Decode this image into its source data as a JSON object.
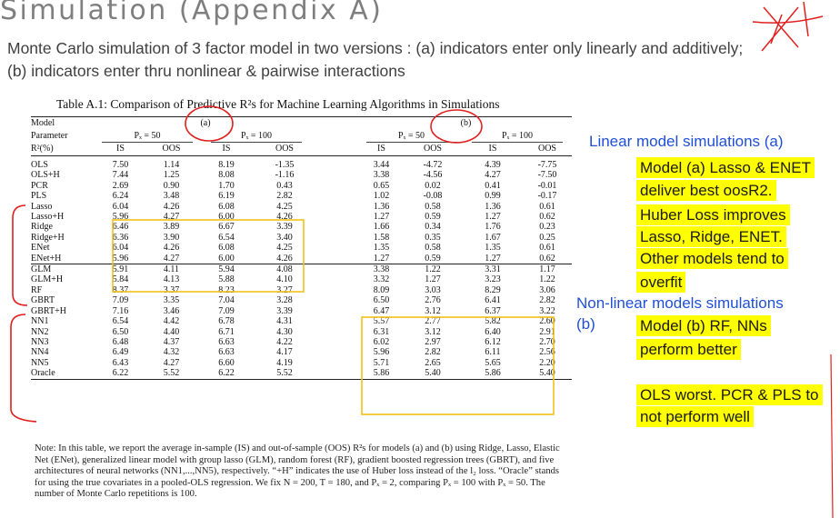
{
  "slide": {
    "title": "Simulation (Appendix A)",
    "subtitle": "Monte Carlo simulation of 3 factor model in two versions : (a) indicators enter only linearly and additively;   (b) indicators enter thru nonlinear & pairwise interactions"
  },
  "table": {
    "caption": "Table A.1: Comparison of Predictive R²s for Machine Learning Algorithms in Simulations",
    "row_labels": {
      "model": "Model",
      "parameter": "Parameter",
      "metric": "R²(%)"
    },
    "model_a": "(a)",
    "model_b": "(b)",
    "param_50": "Pₓ = 50",
    "param_100": "Pₓ = 100",
    "is_label": "IS",
    "oos_label": "OOS",
    "rows": [
      {
        "name": "OLS",
        "v": [
          "7.50",
          "1.14",
          "8.19",
          "-1.35",
          "3.44",
          "-4.72",
          "4.39",
          "-7.75"
        ]
      },
      {
        "name": "OLS+H",
        "v": [
          "7.44",
          "1.25",
          "8.08",
          "-1.16",
          "3.38",
          "-4.56",
          "4.27",
          "-7.50"
        ]
      },
      {
        "name": "PCR",
        "v": [
          "2.69",
          "0.90",
          "1.70",
          "0.43",
          "0.65",
          "0.02",
          "0.41",
          "-0.01"
        ]
      },
      {
        "name": "PLS",
        "v": [
          "6.24",
          "3.48",
          "6.19",
          "2.82",
          "1.02",
          "-0.08",
          "0.99",
          "-0.17"
        ]
      },
      {
        "name": "Lasso",
        "v": [
          "6.04",
          "4.26",
          "6.08",
          "4.25",
          "1.36",
          "0.58",
          "1.36",
          "0.61"
        ]
      },
      {
        "name": "Lasso+H",
        "v": [
          "5.96",
          "4.27",
          "6.00",
          "4.26",
          "1.27",
          "0.59",
          "1.27",
          "0.62"
        ]
      },
      {
        "name": "Ridge",
        "v": [
          "6.46",
          "3.89",
          "6.67",
          "3.39",
          "1.66",
          "0.34",
          "1.76",
          "0.23"
        ]
      },
      {
        "name": "Ridge+H",
        "v": [
          "6.36",
          "3.90",
          "6.54",
          "3.40",
          "1.58",
          "0.35",
          "1.67",
          "0.25"
        ]
      },
      {
        "name": "ENet",
        "v": [
          "6.04",
          "4.26",
          "6.08",
          "4.25",
          "1.35",
          "0.58",
          "1.35",
          "0.61"
        ]
      },
      {
        "name": "ENet+H",
        "v": [
          "5.96",
          "4.27",
          "6.00",
          "4.26",
          "1.27",
          "0.59",
          "1.27",
          "0.62"
        ]
      },
      {
        "name": "GLM",
        "v": [
          "5.91",
          "4.11",
          "5.94",
          "4.08",
          "3.38",
          "1.22",
          "3.31",
          "1.17"
        ]
      },
      {
        "name": "GLM+H",
        "v": [
          "5.84",
          "4.13",
          "5.88",
          "4.10",
          "3.32",
          "1.27",
          "3.23",
          "1.22"
        ]
      },
      {
        "name": "RF",
        "v": [
          "8.37",
          "3.37",
          "8.23",
          "3.27",
          "8.09",
          "3.03",
          "8.29",
          "3.06"
        ]
      },
      {
        "name": "GBRT",
        "v": [
          "7.09",
          "3.35",
          "7.04",
          "3.28",
          "6.50",
          "2.76",
          "6.41",
          "2.82"
        ]
      },
      {
        "name": "GBRT+H",
        "v": [
          "7.16",
          "3.46",
          "7.09",
          "3.39",
          "6.47",
          "3.12",
          "6.37",
          "3.22"
        ]
      },
      {
        "name": "NN1",
        "v": [
          "6.54",
          "4.42",
          "6.78",
          "4.31",
          "5.57",
          "2.77",
          "5.82",
          "2.60"
        ]
      },
      {
        "name": "NN2",
        "v": [
          "6.50",
          "4.40",
          "6.71",
          "4.30",
          "6.31",
          "3.12",
          "6.40",
          "2.91"
        ]
      },
      {
        "name": "NN3",
        "v": [
          "6.48",
          "4.37",
          "6.63",
          "4.22",
          "6.02",
          "2.97",
          "6.12",
          "2.70"
        ]
      },
      {
        "name": "NN4",
        "v": [
          "6.49",
          "4.32",
          "6.63",
          "4.17",
          "5.96",
          "2.82",
          "6.11",
          "2.56"
        ]
      },
      {
        "name": "NN5",
        "v": [
          "6.43",
          "4.27",
          "6.60",
          "4.19",
          "5.71",
          "2.65",
          "5.65",
          "2.20"
        ]
      },
      {
        "name": "Oracle",
        "v": [
          "6.22",
          "5.52",
          "6.22",
          "5.52",
          "5.86",
          "5.40",
          "5.86",
          "5.40"
        ]
      }
    ],
    "note": "Note: In this table, we report the average in-sample (IS) and out-of-sample (OOS) R²s for models (a) and (b) using Ridge, Lasso, Elastic Net (ENet), generalized linear model with group lasso (GLM), random forest (RF), gradient boosted regression trees (GBRT), and five architectures of neural networks (NN1,...,NN5), respectively. “+H” indicates the use of Huber loss instead of the l₂ loss. “Oracle” stands for using the true covariates in a pooled-OLS regression. We fix N = 200, T = 180, and Pₓ = 2, comparing Pₓ = 100 with Pₓ = 50. The number of Monte Carlo repetitions is 100."
  },
  "annotations": {
    "linear_heading": "Linear model simulations (a)",
    "linear_points": [
      "Model (a) Lasso & ENET",
      "deliver best oosR2.",
      "Huber Loss improves",
      "Lasso, Ridge, ENET.",
      "Other models tend to",
      "overfit"
    ],
    "nonlinear_heading": "Non-linear models simulations",
    "nonlinear_b": "(b)",
    "nonlinear_points": [
      "Model (b) RF, NNs",
      "perform better"
    ],
    "ols_points": [
      "OLS worst. PCR & PLS to",
      "not perform well"
    ]
  },
  "colors": {
    "annotation_blue": "#1f4fd6",
    "highlight": "#ffff00",
    "ink_red": "#e0201e",
    "box_yellow": "#f2c21a",
    "title_gray": "#7f7f7f"
  }
}
